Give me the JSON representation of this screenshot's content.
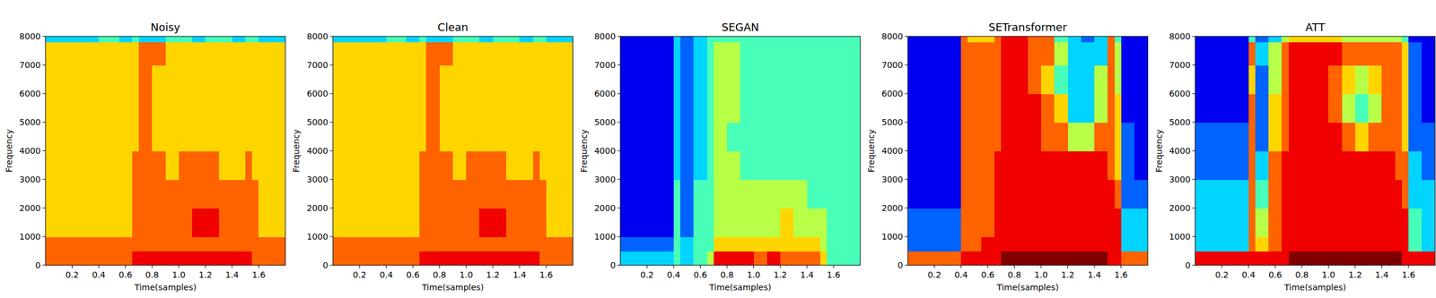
{
  "chart_data": [
    {
      "type": "heatmap",
      "title": "Noisy",
      "x_label": "Time(samples)",
      "y_label": "Frequency",
      "xlim": [
        0,
        1.8
      ],
      "ylim": [
        0,
        8000
      ],
      "xticks": [
        0.2,
        0.4,
        0.6,
        0.8,
        1.0,
        1.2,
        1.4,
        1.6
      ],
      "yticks": [
        0,
        1000,
        2000,
        3000,
        4000,
        5000,
        6000,
        7000,
        8000
      ],
      "x_edges": [
        0,
        0.2,
        0.4,
        0.45,
        0.55,
        0.65,
        0.7,
        0.8,
        0.9,
        1.0,
        1.1,
        1.2,
        1.3,
        1.4,
        1.5,
        1.55,
        1.6,
        1.7,
        1.8
      ],
      "y_edges": [
        0,
        500,
        1000,
        2000,
        3000,
        4000,
        5000,
        6000,
        7000,
        7800,
        8000
      ],
      "zlim": [
        0,
        9
      ],
      "cells": [
        [
          7,
          7,
          7,
          7,
          7,
          8,
          8,
          8,
          8,
          8,
          8,
          8,
          8,
          8,
          8,
          7,
          7,
          7
        ],
        [
          7,
          7,
          7,
          7,
          7,
          7,
          7,
          7,
          7,
          7,
          7,
          7,
          7,
          7,
          7,
          7,
          7,
          7
        ],
        [
          6,
          6,
          6,
          6,
          6,
          7,
          7,
          7,
          7,
          7,
          8,
          8,
          7,
          7,
          7,
          7,
          6,
          6
        ],
        [
          6,
          6,
          6,
          6,
          6,
          7,
          7,
          7,
          7,
          7,
          7,
          7,
          7,
          7,
          7,
          7,
          6,
          6
        ],
        [
          6,
          6,
          6,
          6,
          6,
          7,
          7,
          7,
          6,
          7,
          7,
          7,
          6,
          6,
          7,
          6,
          6,
          6
        ],
        [
          6,
          6,
          6,
          6,
          6,
          6,
          7,
          6,
          6,
          6,
          6,
          6,
          6,
          6,
          6,
          6,
          6,
          6
        ],
        [
          6,
          6,
          6,
          6,
          6,
          6,
          7,
          6,
          6,
          6,
          6,
          6,
          6,
          6,
          6,
          6,
          6,
          6
        ],
        [
          6,
          6,
          6,
          6,
          6,
          6,
          7,
          6,
          6,
          6,
          6,
          6,
          6,
          6,
          6,
          6,
          6,
          6
        ],
        [
          6,
          6,
          6,
          6,
          6,
          6,
          7,
          7,
          6,
          6,
          6,
          6,
          6,
          6,
          6,
          6,
          6,
          6
        ],
        [
          3,
          3,
          4,
          4,
          3,
          4,
          3,
          3,
          4,
          4,
          3,
          4,
          4,
          3,
          4,
          4,
          3,
          3
        ]
      ]
    },
    {
      "type": "heatmap",
      "title": "Clean",
      "x_label": "Time(samples)",
      "y_label": "Frequency",
      "xlim": [
        0,
        1.8
      ],
      "ylim": [
        0,
        8000
      ],
      "xticks": [
        0.2,
        0.4,
        0.6,
        0.8,
        1.0,
        1.2,
        1.4,
        1.6
      ],
      "yticks": [
        0,
        1000,
        2000,
        3000,
        4000,
        5000,
        6000,
        7000,
        8000
      ],
      "x_edges": [
        0,
        0.2,
        0.4,
        0.45,
        0.55,
        0.65,
        0.7,
        0.8,
        0.9,
        1.0,
        1.1,
        1.2,
        1.3,
        1.4,
        1.5,
        1.55,
        1.6,
        1.7,
        1.8
      ],
      "y_edges": [
        0,
        500,
        1000,
        2000,
        3000,
        4000,
        5000,
        6000,
        7000,
        7800,
        8000
      ],
      "zlim": [
        0,
        9
      ],
      "cells": [
        [
          7,
          7,
          7,
          7,
          7,
          8,
          8,
          8,
          8,
          8,
          8,
          8,
          8,
          8,
          8,
          7,
          7,
          7
        ],
        [
          7,
          7,
          7,
          7,
          7,
          7,
          7,
          7,
          7,
          7,
          7,
          7,
          7,
          7,
          7,
          7,
          7,
          7
        ],
        [
          6,
          6,
          6,
          6,
          6,
          7,
          7,
          7,
          7,
          7,
          8,
          8,
          7,
          7,
          7,
          7,
          6,
          6
        ],
        [
          6,
          6,
          6,
          6,
          6,
          7,
          7,
          7,
          7,
          7,
          7,
          7,
          7,
          7,
          7,
          7,
          6,
          6
        ],
        [
          6,
          6,
          6,
          6,
          6,
          7,
          7,
          7,
          6,
          7,
          7,
          7,
          6,
          6,
          7,
          6,
          6,
          6
        ],
        [
          6,
          6,
          6,
          6,
          6,
          6,
          7,
          6,
          6,
          6,
          6,
          6,
          6,
          6,
          6,
          6,
          6,
          6
        ],
        [
          6,
          6,
          6,
          6,
          6,
          6,
          7,
          6,
          6,
          6,
          6,
          6,
          6,
          6,
          6,
          6,
          6,
          6
        ],
        [
          6,
          6,
          6,
          6,
          6,
          6,
          7,
          6,
          6,
          6,
          6,
          6,
          6,
          6,
          6,
          6,
          6,
          6
        ],
        [
          6,
          6,
          6,
          6,
          6,
          6,
          7,
          7,
          6,
          6,
          6,
          6,
          6,
          6,
          6,
          6,
          6,
          6
        ],
        [
          3,
          3,
          4,
          4,
          3,
          4,
          3,
          3,
          4,
          4,
          3,
          4,
          4,
          3,
          4,
          4,
          3,
          3
        ]
      ]
    },
    {
      "type": "heatmap",
      "title": "SEGAN",
      "x_label": "Time(samples)",
      "y_label": "Frequency",
      "xlim": [
        0,
        1.8
      ],
      "ylim": [
        0,
        8000
      ],
      "xticks": [
        0.2,
        0.4,
        0.6,
        0.8,
        1.0,
        1.2,
        1.4,
        1.6
      ],
      "yticks": [
        0,
        1000,
        2000,
        3000,
        4000,
        5000,
        6000,
        7000,
        8000
      ],
      "x_edges": [
        0,
        0.2,
        0.4,
        0.45,
        0.55,
        0.65,
        0.7,
        0.8,
        0.9,
        1.0,
        1.1,
        1.2,
        1.3,
        1.4,
        1.5,
        1.55,
        1.6,
        1.7,
        1.8
      ],
      "y_edges": [
        0,
        500,
        1000,
        2000,
        3000,
        4000,
        5000,
        6000,
        7000,
        7800,
        8000
      ],
      "zlim": [
        0,
        9
      ],
      "cells": [
        [
          3,
          3,
          4,
          3,
          4,
          5,
          8,
          8,
          8,
          7,
          8,
          7,
          7,
          7,
          6,
          4,
          4,
          4
        ],
        [
          2,
          2,
          4,
          3,
          4,
          4,
          6,
          6,
          6,
          6,
          6,
          6,
          6,
          6,
          5,
          4,
          4,
          4
        ],
        [
          1,
          1,
          4,
          2,
          4,
          4,
          5,
          5,
          5,
          5,
          5,
          6,
          5,
          5,
          5,
          4,
          4,
          4
        ],
        [
          1,
          1,
          4,
          2,
          4,
          4,
          5,
          5,
          5,
          5,
          5,
          5,
          5,
          4,
          4,
          4,
          4,
          4
        ],
        [
          1,
          1,
          3,
          2,
          3,
          4,
          5,
          5,
          4,
          4,
          4,
          4,
          4,
          4,
          4,
          4,
          4,
          4
        ],
        [
          1,
          1,
          3,
          2,
          3,
          4,
          5,
          4,
          4,
          4,
          4,
          4,
          4,
          4,
          4,
          4,
          4,
          4
        ],
        [
          1,
          1,
          3,
          2,
          3,
          4,
          5,
          5,
          4,
          4,
          4,
          4,
          4,
          4,
          4,
          4,
          4,
          4
        ],
        [
          1,
          1,
          3,
          2,
          3,
          4,
          5,
          5,
          4,
          4,
          4,
          4,
          4,
          4,
          4,
          4,
          4,
          4
        ],
        [
          1,
          1,
          3,
          2,
          3,
          4,
          5,
          5,
          4,
          4,
          4,
          4,
          4,
          4,
          4,
          4,
          4,
          4
        ],
        [
          1,
          1,
          3,
          2,
          3,
          4,
          4,
          4,
          4,
          4,
          4,
          4,
          4,
          4,
          4,
          4,
          4,
          4
        ]
      ]
    },
    {
      "type": "heatmap",
      "title": "SETransformer",
      "x_label": "Time(samples)",
      "y_label": "Frequency",
      "xlim": [
        0,
        1.8
      ],
      "ylim": [
        0,
        8000
      ],
      "xticks": [
        0.2,
        0.4,
        0.6,
        0.8,
        1.0,
        1.2,
        1.4,
        1.6
      ],
      "yticks": [
        0,
        1000,
        2000,
        3000,
        4000,
        5000,
        6000,
        7000,
        8000
      ],
      "x_edges": [
        0,
        0.2,
        0.4,
        0.45,
        0.55,
        0.65,
        0.7,
        0.8,
        0.9,
        1.0,
        1.1,
        1.2,
        1.3,
        1.4,
        1.5,
        1.55,
        1.6,
        1.7,
        1.8
      ],
      "y_edges": [
        0,
        500,
        1000,
        2000,
        3000,
        4000,
        5000,
        6000,
        7000,
        7800,
        8000
      ],
      "zlim": [
        0,
        9
      ],
      "cells": [
        [
          7,
          7,
          8,
          8,
          8,
          8,
          9,
          9,
          9,
          9,
          9,
          9,
          9,
          9,
          8,
          8,
          7,
          7
        ],
        [
          2,
          2,
          7,
          7,
          8,
          8,
          8,
          8,
          8,
          8,
          8,
          8,
          8,
          8,
          8,
          8,
          3,
          3
        ],
        [
          2,
          2,
          7,
          7,
          7,
          8,
          8,
          8,
          8,
          8,
          8,
          8,
          8,
          8,
          8,
          8,
          3,
          3
        ],
        [
          1,
          1,
          7,
          7,
          7,
          8,
          8,
          8,
          8,
          8,
          8,
          8,
          8,
          8,
          8,
          7,
          2,
          2
        ],
        [
          1,
          1,
          7,
          7,
          7,
          8,
          8,
          8,
          8,
          8,
          8,
          8,
          8,
          8,
          7,
          6,
          2,
          1
        ],
        [
          1,
          1,
          7,
          7,
          7,
          7,
          8,
          8,
          8,
          7,
          7,
          5,
          5,
          7,
          7,
          6,
          2,
          1
        ],
        [
          1,
          1,
          7,
          7,
          7,
          7,
          8,
          8,
          8,
          7,
          6,
          3,
          3,
          5,
          7,
          6,
          1,
          1
        ],
        [
          1,
          1,
          7,
          7,
          7,
          7,
          8,
          8,
          7,
          6,
          4,
          3,
          3,
          5,
          7,
          5,
          1,
          1
        ],
        [
          1,
          1,
          7,
          7,
          7,
          7,
          8,
          8,
          7,
          7,
          5,
          3,
          3,
          3,
          7,
          5,
          1,
          1
        ],
        [
          1,
          1,
          7,
          6,
          6,
          7,
          8,
          8,
          7,
          7,
          4,
          3,
          2,
          3,
          7,
          4,
          1,
          1
        ]
      ]
    },
    {
      "type": "heatmap",
      "title": "ATT",
      "x_label": "Time(samples)",
      "y_label": "Frequency",
      "xlim": [
        0,
        1.8
      ],
      "ylim": [
        0,
        8000
      ],
      "xticks": [
        0.2,
        0.4,
        0.6,
        0.8,
        1.0,
        1.2,
        1.4,
        1.6
      ],
      "yticks": [
        0,
        1000,
        2000,
        3000,
        4000,
        5000,
        6000,
        7000,
        8000
      ],
      "x_edges": [
        0,
        0.2,
        0.4,
        0.45,
        0.55,
        0.65,
        0.7,
        0.8,
        0.9,
        1.0,
        1.1,
        1.2,
        1.3,
        1.4,
        1.5,
        1.55,
        1.6,
        1.7,
        1.8
      ],
      "y_edges": [
        0,
        500,
        1000,
        2000,
        3000,
        4000,
        5000,
        6000,
        7000,
        7800,
        8000
      ],
      "zlim": [
        0,
        9
      ],
      "cells": [
        [
          8,
          8,
          8,
          8,
          8,
          8,
          9,
          9,
          9,
          9,
          9,
          9,
          9,
          9,
          9,
          8,
          8,
          8
        ],
        [
          3,
          3,
          7,
          6,
          7,
          8,
          8,
          8,
          8,
          8,
          8,
          8,
          8,
          8,
          8,
          8,
          4,
          3
        ],
        [
          3,
          3,
          7,
          5,
          7,
          8,
          8,
          8,
          8,
          8,
          8,
          8,
          8,
          8,
          8,
          8,
          4,
          3
        ],
        [
          3,
          3,
          7,
          4,
          7,
          8,
          8,
          8,
          8,
          8,
          8,
          8,
          8,
          8,
          8,
          7,
          3,
          3
        ],
        [
          2,
          2,
          7,
          3,
          7,
          8,
          8,
          8,
          8,
          8,
          8,
          8,
          8,
          8,
          7,
          7,
          3,
          2
        ],
        [
          2,
          2,
          7,
          2,
          6,
          7,
          8,
          8,
          8,
          8,
          7,
          6,
          7,
          7,
          7,
          6,
          2,
          2
        ],
        [
          1,
          1,
          7,
          2,
          6,
          7,
          8,
          8,
          8,
          7,
          5,
          4,
          5,
          7,
          7,
          6,
          2,
          1
        ],
        [
          1,
          1,
          6,
          2,
          5,
          7,
          8,
          8,
          8,
          7,
          6,
          5,
          6,
          7,
          7,
          6,
          2,
          1
        ],
        [
          1,
          1,
          7,
          3,
          5,
          7,
          8,
          8,
          8,
          8,
          7,
          7,
          7,
          7,
          7,
          6,
          2,
          1
        ],
        [
          1,
          1,
          4,
          2,
          3,
          5,
          6,
          6,
          6,
          6,
          5,
          5,
          5,
          5,
          5,
          4,
          1,
          1
        ]
      ]
    }
  ]
}
